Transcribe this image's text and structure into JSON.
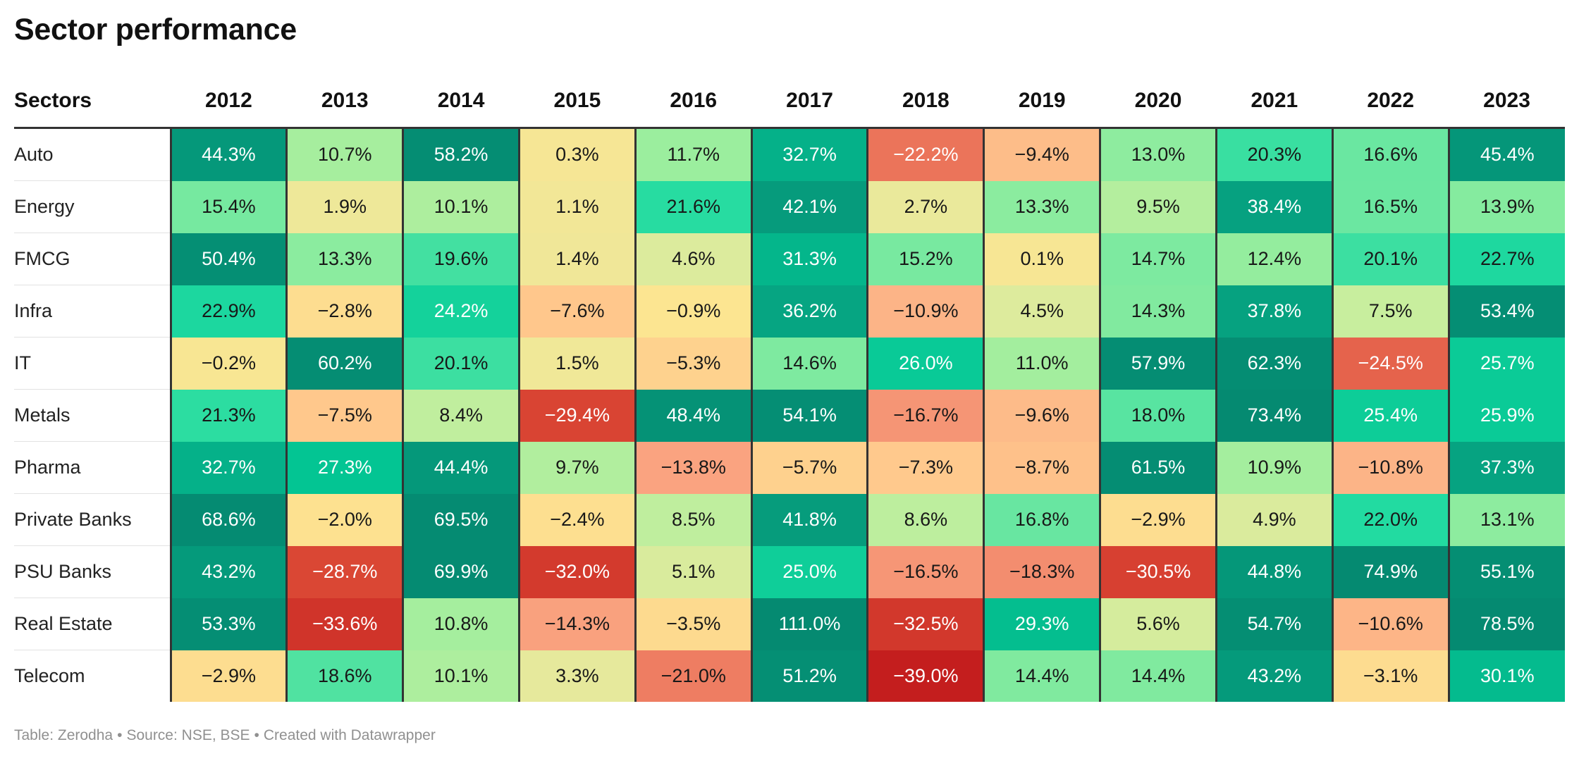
{
  "title": "Sector performance",
  "footer": {
    "table_credit": "Table: Zerodha",
    "source": "Source: NSE, BSE",
    "created": "Created with Datawrapper",
    "separator": "•"
  },
  "chart_data": {
    "type": "heatmap",
    "title": "Sector performance",
    "row_header": "Sectors",
    "columns": [
      "2012",
      "2013",
      "2014",
      "2015",
      "2016",
      "2017",
      "2018",
      "2019",
      "2020",
      "2021",
      "2022",
      "2023"
    ],
    "rows": [
      {
        "name": "Auto",
        "values": [
          44.3,
          10.7,
          58.2,
          0.3,
          11.7,
          32.7,
          -22.2,
          -9.4,
          13.0,
          20.3,
          16.6,
          45.4
        ],
        "labels": [
          "44.3%",
          "10.7%",
          "58.2%",
          "0.3%",
          "11.7%",
          "32.7%",
          "−22.2%",
          "−9.4%",
          "13.0%",
          "20.3%",
          "16.6%",
          "45.4%"
        ]
      },
      {
        "name": "Energy",
        "values": [
          15.4,
          1.9,
          10.1,
          1.1,
          21.6,
          42.1,
          2.7,
          13.3,
          9.5,
          38.4,
          16.5,
          13.9
        ],
        "labels": [
          "15.4%",
          "1.9%",
          "10.1%",
          "1.1%",
          "21.6%",
          "42.1%",
          "2.7%",
          "13.3%",
          "9.5%",
          "38.4%",
          "16.5%",
          "13.9%"
        ]
      },
      {
        "name": "FMCG",
        "values": [
          50.4,
          13.3,
          19.6,
          1.4,
          4.6,
          31.3,
          15.2,
          0.1,
          14.7,
          12.4,
          20.1,
          22.7
        ],
        "labels": [
          "50.4%",
          "13.3%",
          "19.6%",
          "1.4%",
          "4.6%",
          "31.3%",
          "15.2%",
          "0.1%",
          "14.7%",
          "12.4%",
          "20.1%",
          "22.7%"
        ]
      },
      {
        "name": "Infra",
        "values": [
          22.9,
          -2.8,
          24.2,
          -7.6,
          -0.9,
          36.2,
          -10.9,
          4.5,
          14.3,
          37.8,
          7.5,
          53.4
        ],
        "labels": [
          "22.9%",
          "−2.8%",
          "24.2%",
          "−7.6%",
          "−0.9%",
          "36.2%",
          "−10.9%",
          "4.5%",
          "14.3%",
          "37.8%",
          "7.5%",
          "53.4%"
        ]
      },
      {
        "name": "IT",
        "values": [
          -0.2,
          60.2,
          20.1,
          1.5,
          -5.3,
          14.6,
          26.0,
          11.0,
          57.9,
          62.3,
          -24.5,
          25.7
        ],
        "labels": [
          "−0.2%",
          "60.2%",
          "20.1%",
          "1.5%",
          "−5.3%",
          "14.6%",
          "26.0%",
          "11.0%",
          "57.9%",
          "62.3%",
          "−24.5%",
          "25.7%"
        ]
      },
      {
        "name": "Metals",
        "values": [
          21.3,
          -7.5,
          8.4,
          -29.4,
          48.4,
          54.1,
          -16.7,
          -9.6,
          18.0,
          73.4,
          25.4,
          25.9
        ],
        "labels": [
          "21.3%",
          "−7.5%",
          "8.4%",
          "−29.4%",
          "48.4%",
          "54.1%",
          "−16.7%",
          "−9.6%",
          "18.0%",
          "73.4%",
          "25.4%",
          "25.9%"
        ]
      },
      {
        "name": "Pharma",
        "values": [
          32.7,
          27.3,
          44.4,
          9.7,
          -13.8,
          -5.7,
          -7.3,
          -8.7,
          61.5,
          10.9,
          -10.8,
          37.3
        ],
        "labels": [
          "32.7%",
          "27.3%",
          "44.4%",
          "9.7%",
          "−13.8%",
          "−5.7%",
          "−7.3%",
          "−8.7%",
          "61.5%",
          "10.9%",
          "−10.8%",
          "37.3%"
        ]
      },
      {
        "name": "Private Banks",
        "values": [
          68.6,
          -2.0,
          69.5,
          -2.4,
          8.5,
          41.8,
          8.6,
          16.8,
          -2.9,
          4.9,
          22.0,
          13.1
        ],
        "labels": [
          "68.6%",
          "−2.0%",
          "69.5%",
          "−2.4%",
          "8.5%",
          "41.8%",
          "8.6%",
          "16.8%",
          "−2.9%",
          "4.9%",
          "22.0%",
          "13.1%"
        ]
      },
      {
        "name": "PSU Banks",
        "values": [
          43.2,
          -28.7,
          69.9,
          -32.0,
          5.1,
          25.0,
          -16.5,
          -18.3,
          -30.5,
          44.8,
          74.9,
          55.1
        ],
        "labels": [
          "43.2%",
          "−28.7%",
          "69.9%",
          "−32.0%",
          "5.1%",
          "25.0%",
          "−16.5%",
          "−18.3%",
          "−30.5%",
          "44.8%",
          "74.9%",
          "55.1%"
        ]
      },
      {
        "name": "Real Estate",
        "values": [
          53.3,
          -33.6,
          10.8,
          -14.3,
          -3.5,
          111.0,
          -32.5,
          29.3,
          5.6,
          54.7,
          -10.6,
          78.5
        ],
        "labels": [
          "53.3%",
          "−33.6%",
          "10.8%",
          "−14.3%",
          "−3.5%",
          "111.0%",
          "−32.5%",
          "29.3%",
          "5.6%",
          "54.7%",
          "−10.6%",
          "78.5%"
        ]
      },
      {
        "name": "Telecom",
        "values": [
          -2.9,
          18.6,
          10.1,
          3.3,
          -21.0,
          51.2,
          -39.0,
          14.4,
          14.4,
          43.2,
          -3.1,
          30.1
        ],
        "labels": [
          "−2.9%",
          "18.6%",
          "10.1%",
          "3.3%",
          "−21.0%",
          "51.2%",
          "−39.0%",
          "14.4%",
          "14.4%",
          "43.2%",
          "−3.1%",
          "30.1%"
        ]
      }
    ],
    "color_scale": {
      "stops": [
        {
          "value": -39,
          "color": "#c41e1e"
        },
        {
          "value": -28,
          "color": "#dc4a36"
        },
        {
          "value": -20,
          "color": "#f08468"
        },
        {
          "value": -13,
          "color": "#fba783"
        },
        {
          "value": -7,
          "color": "#ffcb8d"
        },
        {
          "value": -1,
          "color": "#fce591"
        },
        {
          "value": 3,
          "color": "#e8e99c"
        },
        {
          "value": 8,
          "color": "#c4ee9e"
        },
        {
          "value": 12,
          "color": "#98ee9e"
        },
        {
          "value": 17,
          "color": "#66e6a1"
        },
        {
          "value": 22,
          "color": "#22dba1"
        },
        {
          "value": 27,
          "color": "#03c694"
        },
        {
          "value": 36,
          "color": "#06a582"
        },
        {
          "value": 50,
          "color": "#058f74"
        },
        {
          "value": 75,
          "color": "#058a71"
        },
        {
          "value": 111,
          "color": "#058a71"
        }
      ],
      "light_text": "#ffffff",
      "dark_text": "#181818"
    }
  }
}
